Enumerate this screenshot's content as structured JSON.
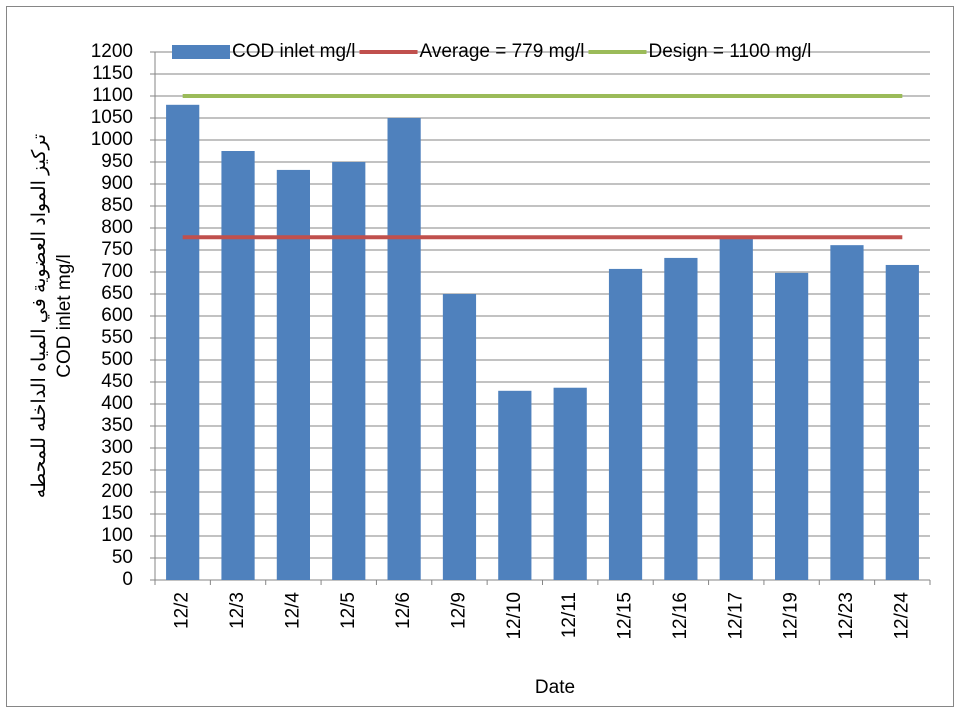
{
  "chart_data": {
    "type": "bar",
    "ylabel": [
      "تركيز المواد العضوية في المياه الداخله للمحطه",
      "COD inlet mg/l"
    ],
    "xlabel": "Date",
    "categories": [
      "12/2",
      "12/3",
      "12/4",
      "12/5",
      "12/6",
      "12/9",
      "12/10",
      "12/11",
      "12/15",
      "12/16",
      "12/17",
      "12/19",
      "12/23",
      "12/24"
    ],
    "series": [
      {
        "name": "COD inlet mg/l",
        "color": "#4f81bd",
        "type": "bar",
        "values": [
          1080,
          975,
          932,
          950,
          1050,
          650,
          430,
          437,
          707,
          732,
          780,
          698,
          761,
          716
        ]
      },
      {
        "name": "Average = 779 mg/l",
        "color": "#c0504d",
        "type": "line",
        "values": [
          779,
          779,
          779,
          779,
          779,
          779,
          779,
          779,
          779,
          779,
          779,
          779,
          779,
          779
        ]
      },
      {
        "name": "Design = 1100 mg/l",
        "color": "#9bbb59",
        "type": "line",
        "values": [
          1100,
          1100,
          1100,
          1100,
          1100,
          1100,
          1100,
          1100,
          1100,
          1100,
          1100,
          1100,
          1100,
          1100
        ]
      }
    ],
    "ylim": [
      0,
      1200
    ],
    "yticks": [
      0,
      50,
      100,
      150,
      200,
      250,
      300,
      350,
      400,
      450,
      500,
      550,
      600,
      650,
      700,
      750,
      800,
      850,
      900,
      950,
      1000,
      1050,
      1100,
      1150,
      1200
    ],
    "grid": true,
    "legend": "top"
  }
}
